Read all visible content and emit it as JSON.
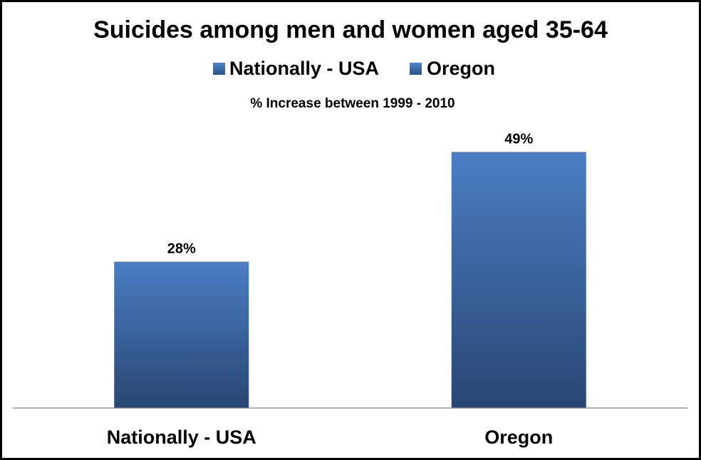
{
  "chart_data": {
    "type": "bar",
    "title": "Suicides among men and women aged 35-64",
    "subtitle": "% Increase between 1999 - 2010",
    "categories": [
      "Nationally - USA",
      "Oregon"
    ],
    "values": [
      28,
      49
    ],
    "data_labels": [
      "28%",
      "49%"
    ],
    "legend": [
      "Nationally - USA",
      "Oregon"
    ],
    "legend_position": "top",
    "ylim": [
      0,
      60
    ],
    "grid": false,
    "colors": {
      "bar_top": "#4a7ec4",
      "bar_bottom": "#294672",
      "axis": "#888888",
      "legend_top": "#4f86cc",
      "legend_bottom": "#2b4f86"
    }
  }
}
